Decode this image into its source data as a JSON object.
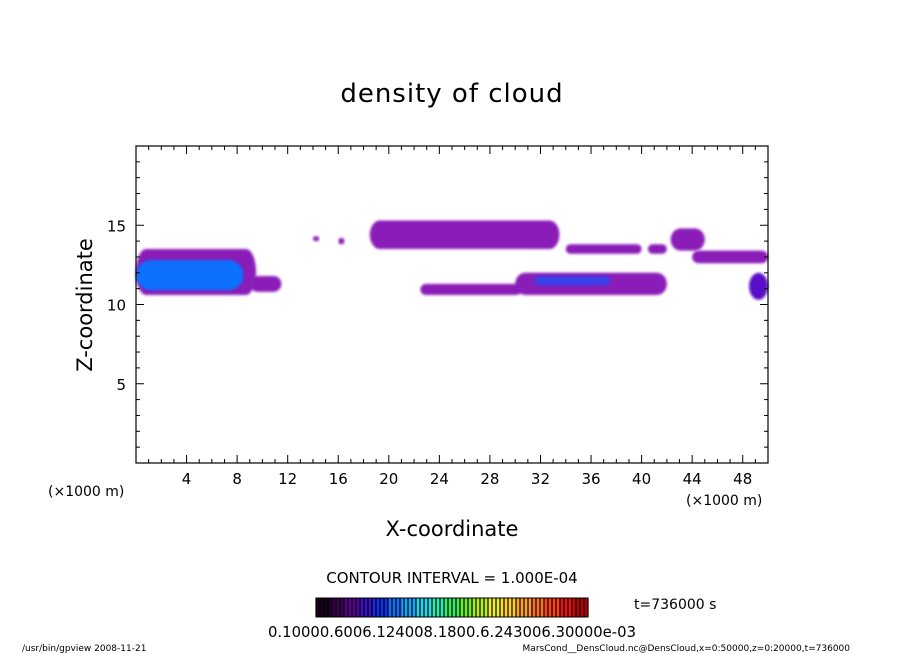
{
  "chart_data": {
    "type": "heatmap",
    "title": "density of cloud",
    "xlabel": "X-coordinate",
    "ylabel": "Z-coordinate",
    "x_unit_left": "(×1000 m)",
    "x_unit_right": "(×1000 m)",
    "xlim": [
      0,
      50
    ],
    "ylim": [
      0,
      20
    ],
    "xticks": [
      4,
      8,
      12,
      16,
      20,
      24,
      28,
      32,
      36,
      40,
      44,
      48
    ],
    "yticks": [
      5,
      10,
      15
    ],
    "contour_interval_text": "CONTOUR INTERVAL = 1.000E-04",
    "time_text": "t=736000 s",
    "colorbar_labels_text": "0.10000.6006.124008.1800.6.243006.30000e-03",
    "colorbar_colors": [
      "#1a001a",
      "#3a0050",
      "#5a0090",
      "#3a10c8",
      "#1030f0",
      "#1070ff",
      "#10a8ff",
      "#20d8f0",
      "#20f0b0",
      "#30f060",
      "#70f020",
      "#b8f010",
      "#f0f020",
      "#ffd020",
      "#ffa020",
      "#ff7020",
      "#ff4010",
      "#e81010",
      "#b80000"
    ],
    "cloud_regions": [
      {
        "x": [
          0,
          9.5
        ],
        "z": [
          10.6,
          13.5
        ],
        "level": 1,
        "core": {
          "x": [
            0,
            8.5
          ],
          "z": [
            10.9,
            12.8
          ],
          "level": 4
        }
      },
      {
        "x": [
          9,
          11.5
        ],
        "z": [
          10.8,
          11.8
        ],
        "level": 1
      },
      {
        "x": [
          14,
          14.5
        ],
        "z": [
          14.0,
          14.3
        ],
        "level": 1
      },
      {
        "x": [
          16,
          16.5
        ],
        "z": [
          13.8,
          14.2
        ],
        "level": 1
      },
      {
        "x": [
          18.5,
          33.5
        ],
        "z": [
          13.5,
          15.3
        ],
        "level": 1
      },
      {
        "x": [
          34,
          40
        ],
        "z": [
          13.2,
          13.8
        ],
        "level": 1
      },
      {
        "x": [
          40.5,
          42
        ],
        "z": [
          13.2,
          13.8
        ],
        "level": 1
      },
      {
        "x": [
          42.3,
          45
        ],
        "z": [
          13.4,
          14.8
        ],
        "level": 1
      },
      {
        "x": [
          44,
          50
        ],
        "z": [
          12.6,
          13.4
        ],
        "level": 1
      },
      {
        "x": [
          22.5,
          30.5
        ],
        "z": [
          10.6,
          11.3
        ],
        "level": 1
      },
      {
        "x": [
          30,
          42
        ],
        "z": [
          10.6,
          12.0
        ],
        "level": 1,
        "core": {
          "x": [
            31.5,
            37.5
          ],
          "z": [
            11.2,
            11.8
          ],
          "level": 3
        }
      },
      {
        "x": [
          48.5,
          50
        ],
        "z": [
          10.3,
          12.0
        ],
        "level": 2
      }
    ]
  },
  "footer": {
    "left": "/usr/bin/gpview   2008-11-21",
    "right": "MarsCond__DensCloud.nc@DensCloud,x=0:50000,z=0:20000,t=736000"
  }
}
